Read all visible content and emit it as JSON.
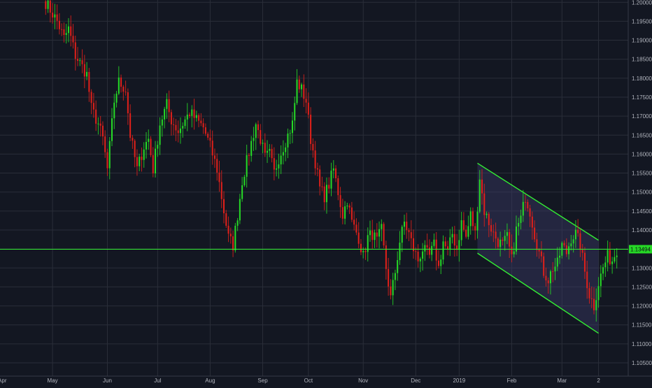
{
  "colors": {
    "background": "#131722",
    "grid": "#2a2e39",
    "up": "#26d926",
    "down": "#e0201a",
    "wick": "#a0a0a0",
    "channel_line": "#33ee33",
    "channel_fill": "#3a3a66",
    "hline": "#33ee33",
    "price_badge": "#26d926",
    "text": "#b2b5be"
  },
  "current_price_label": "1.13494",
  "chart_data": {
    "type": "candlestick",
    "x_axis_labels": [
      "Apr",
      "May",
      "Jun",
      "Jul",
      "Aug",
      "Sep",
      "Oct",
      "Nov",
      "Dec",
      "2019",
      "Feb",
      "Mar",
      "2"
    ],
    "y_ticks": [
      "1.20000",
      "1.19500",
      "1.19000",
      "1.18500",
      "1.18000",
      "1.17500",
      "1.17000",
      "1.16500",
      "1.16000",
      "1.15500",
      "1.15000",
      "1.14500",
      "1.14000",
      "1.13500",
      "1.13000",
      "1.12500",
      "1.12000",
      "1.11500",
      "1.11000",
      "1.10500"
    ],
    "ylim": [
      1.1015,
      1.2006
    ],
    "x_index_range": [
      0,
      275
    ],
    "x_label_index": [
      1,
      23,
      47,
      69,
      92,
      115,
      135,
      159,
      182,
      201,
      224,
      246,
      262
    ],
    "grid": true,
    "horizontal_line": 1.13494,
    "channel": {
      "upper": [
        [
          209,
          1.1576
        ],
        [
          262,
          1.1373
        ]
      ],
      "lower": [
        [
          209,
          1.1339
        ],
        [
          262,
          1.1128
        ]
      ]
    },
    "close_anchors": [
      [
        20,
        1.2
      ],
      [
        25,
        1.195
      ],
      [
        28,
        1.1905
      ],
      [
        30,
        1.193
      ],
      [
        33,
        1.186
      ],
      [
        38,
        1.181
      ],
      [
        40,
        1.172
      ],
      [
        43,
        1.168
      ],
      [
        45,
        1.164
      ],
      [
        47,
        1.156
      ],
      [
        50,
        1.174
      ],
      [
        52,
        1.179
      ],
      [
        55,
        1.177
      ],
      [
        57,
        1.165
      ],
      [
        60,
        1.156
      ],
      [
        63,
        1.162
      ],
      [
        65,
        1.164
      ],
      [
        67,
        1.156
      ],
      [
        70,
        1.168
      ],
      [
        73,
        1.173
      ],
      [
        75,
        1.169
      ],
      [
        78,
        1.166
      ],
      [
        80,
        1.168
      ],
      [
        83,
        1.171
      ],
      [
        86,
        1.169
      ],
      [
        89,
        1.167
      ],
      [
        92,
        1.162
      ],
      [
        95,
        1.156
      ],
      [
        98,
        1.145
      ],
      [
        100,
        1.138
      ],
      [
        102,
        1.136
      ],
      [
        104,
        1.144
      ],
      [
        106,
        1.153
      ],
      [
        108,
        1.158
      ],
      [
        110,
        1.163
      ],
      [
        112,
        1.168
      ],
      [
        114,
        1.164
      ],
      [
        116,
        1.159
      ],
      [
        118,
        1.16
      ],
      [
        120,
        1.155
      ],
      [
        122,
        1.159
      ],
      [
        124,
        1.162
      ],
      [
        126,
        1.165
      ],
      [
        128,
        1.168
      ],
      [
        130,
        1.179
      ],
      [
        132,
        1.177
      ],
      [
        134,
        1.174
      ],
      [
        136,
        1.164
      ],
      [
        138,
        1.158
      ],
      [
        140,
        1.151
      ],
      [
        142,
        1.149
      ],
      [
        144,
        1.152
      ],
      [
        146,
        1.156
      ],
      [
        148,
        1.15
      ],
      [
        150,
        1.144
      ],
      [
        152,
        1.148
      ],
      [
        154,
        1.142
      ],
      [
        157,
        1.138
      ],
      [
        159,
        1.133
      ],
      [
        161,
        1.138
      ],
      [
        163,
        1.139
      ],
      [
        165,
        1.137
      ],
      [
        167,
        1.14
      ],
      [
        169,
        1.13
      ],
      [
        171,
        1.122
      ],
      [
        173,
        1.129
      ],
      [
        175,
        1.137
      ],
      [
        177,
        1.142
      ],
      [
        179,
        1.139
      ],
      [
        181,
        1.135
      ],
      [
        183,
        1.132
      ],
      [
        185,
        1.135
      ],
      [
        188,
        1.133
      ],
      [
        190,
        1.136
      ],
      [
        192,
        1.13
      ],
      [
        194,
        1.137
      ],
      [
        196,
        1.134
      ],
      [
        198,
        1.139
      ],
      [
        200,
        1.135
      ],
      [
        202,
        1.142
      ],
      [
        204,
        1.138
      ],
      [
        206,
        1.144
      ],
      [
        208,
        1.139
      ],
      [
        210,
        1.154
      ],
      [
        212,
        1.145
      ],
      [
        214,
        1.142
      ],
      [
        216,
        1.139
      ],
      [
        218,
        1.137
      ],
      [
        220,
        1.136
      ],
      [
        222,
        1.138
      ],
      [
        224,
        1.132
      ],
      [
        226,
        1.14
      ],
      [
        228,
        1.143
      ],
      [
        230,
        1.149
      ],
      [
        232,
        1.145
      ],
      [
        234,
        1.139
      ],
      [
        236,
        1.134
      ],
      [
        238,
        1.129
      ],
      [
        240,
        1.127
      ],
      [
        242,
        1.13
      ],
      [
        244,
        1.131
      ],
      [
        246,
        1.136
      ],
      [
        248,
        1.134
      ],
      [
        250,
        1.138
      ],
      [
        252,
        1.139
      ],
      [
        254,
        1.136
      ],
      [
        256,
        1.129
      ],
      [
        258,
        1.123
      ],
      [
        260,
        1.12
      ],
      [
        262,
        1.126
      ],
      [
        264,
        1.13
      ],
      [
        266,
        1.133
      ],
      [
        268,
        1.132
      ],
      [
        270,
        1.135
      ]
    ]
  }
}
